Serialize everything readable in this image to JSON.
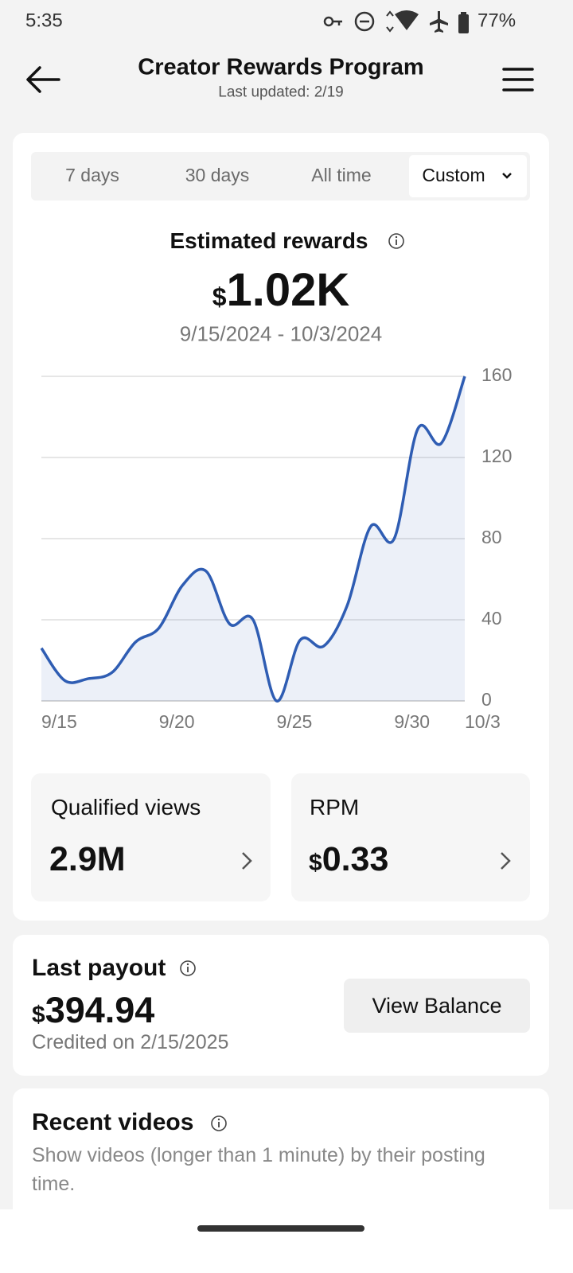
{
  "status_bar": {
    "time": "5:35",
    "battery": "77%"
  },
  "header": {
    "title": "Creator Rewards Program",
    "subtitle": "Last updated: 2/19"
  },
  "tabs": [
    "7 days",
    "30 days",
    "All time",
    "Custom"
  ],
  "summary": {
    "label": "Estimated rewards",
    "currency": "$",
    "amount": "1.02K",
    "date_range": "9/15/2024 - 10/3/2024"
  },
  "chart_data": {
    "type": "line",
    "color": "#2f5db3",
    "categories": [
      "9/15",
      null,
      null,
      null,
      null,
      "9/20",
      null,
      null,
      null,
      null,
      "9/25",
      null,
      null,
      null,
      null,
      "9/30",
      null,
      null,
      "10/3"
    ],
    "values": [
      26,
      10,
      11,
      14,
      29,
      36,
      57,
      64,
      38,
      40,
      0,
      30,
      27,
      47,
      86,
      80,
      134,
      127,
      160
    ],
    "ylim": [
      0,
      160
    ],
    "yticks": [
      0,
      40,
      80,
      120,
      160
    ],
    "grid": true
  },
  "metrics": [
    {
      "label": "Qualified views",
      "value": "2.9M"
    },
    {
      "label": "RPM",
      "currency": "$",
      "value": "0.33"
    }
  ],
  "payout": {
    "label": "Last payout",
    "currency": "$",
    "amount": "394.94",
    "note": "Credited on 2/15/2025",
    "button": "View Balance"
  },
  "recent": {
    "title": "Recent videos",
    "description": "Show videos (longer than 1 minute) by their posting time."
  }
}
